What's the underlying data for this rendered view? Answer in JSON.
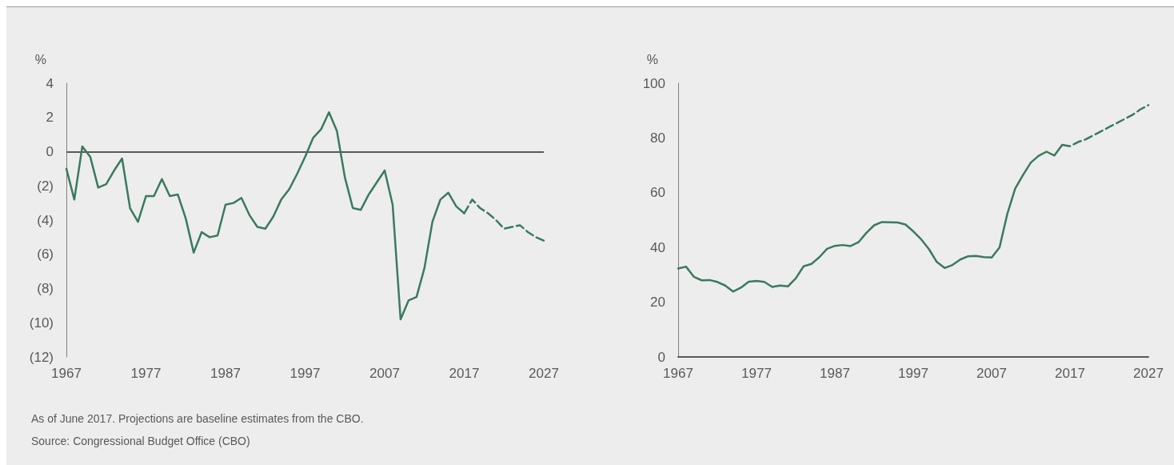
{
  "chart_data": [
    {
      "type": "line",
      "ylabel": "%",
      "categories": [
        "1967",
        null,
        null,
        null,
        null,
        null,
        null,
        null,
        null,
        null,
        "1977",
        null,
        null,
        null,
        null,
        null,
        null,
        null,
        null,
        null,
        "1987",
        null,
        null,
        null,
        null,
        null,
        null,
        null,
        null,
        null,
        "1997",
        null,
        null,
        null,
        null,
        null,
        null,
        null,
        null,
        null,
        "2007",
        null,
        null,
        null,
        null,
        null,
        null,
        null,
        null,
        null,
        "2017",
        null,
        null,
        null,
        null,
        null,
        null,
        null,
        null,
        null,
        "2027"
      ],
      "series": [
        {
          "color": "#3a7a5e",
          "line_style": "solid",
          "values": [
            -1.0,
            -2.8,
            0.3,
            -0.3,
            -2.1,
            -1.9,
            -1.1,
            -0.4,
            -3.3,
            -4.1,
            -2.6,
            -2.6,
            -1.6,
            -2.6,
            -2.5,
            -3.9,
            -5.9,
            -4.7,
            -5.0,
            -4.9,
            -3.1,
            -3.0,
            -2.7,
            -3.7,
            -4.4,
            -4.5,
            -3.8,
            -2.8,
            -2.2,
            -1.3,
            -0.3,
            0.8,
            1.3,
            2.3,
            1.2,
            -1.5,
            -3.3,
            -3.4,
            -2.5,
            -1.8,
            -1.1,
            -3.1,
            -9.8,
            -8.7,
            -8.5,
            -6.8,
            -4.1,
            -2.8,
            -2.4,
            -3.2,
            -3.6,
            null,
            null,
            null,
            null,
            null,
            null,
            null,
            null,
            null,
            null
          ]
        },
        {
          "color": "#3a7a5e",
          "line_style": "dashed",
          "values": [
            null,
            null,
            null,
            null,
            null,
            null,
            null,
            null,
            null,
            null,
            null,
            null,
            null,
            null,
            null,
            null,
            null,
            null,
            null,
            null,
            null,
            null,
            null,
            null,
            null,
            null,
            null,
            null,
            null,
            null,
            null,
            null,
            null,
            null,
            null,
            null,
            null,
            null,
            null,
            null,
            null,
            null,
            null,
            null,
            null,
            null,
            null,
            null,
            null,
            null,
            -3.6,
            -2.8,
            -3.3,
            -3.6,
            -4.0,
            -4.5,
            -4.4,
            -4.3,
            -4.7,
            -5.0,
            -5.2
          ]
        }
      ],
      "ylim": [
        -12,
        4
      ],
      "yticks": [
        {
          "value": -12,
          "label": "(12)"
        },
        {
          "value": -10,
          "label": "(10)"
        },
        {
          "value": -8,
          "label": "(8)"
        },
        {
          "value": -6,
          "label": "(6)"
        },
        {
          "value": -4,
          "label": "(4)"
        },
        {
          "value": -2,
          "label": "(2)"
        },
        0,
        2,
        4
      ],
      "ref_lines": [
        {
          "axis": "y",
          "value": 0,
          "color": "#595959"
        }
      ],
      "grid": false,
      "marker": "none",
      "annotations": [
        "As of June 2017. Projections are baseline estimates from the CBO.",
        "Source: Congressional Budget Office (CBO)"
      ]
    },
    {
      "type": "line",
      "ylabel": "%",
      "categories": [
        "1967",
        null,
        null,
        null,
        null,
        null,
        null,
        null,
        null,
        null,
        "1977",
        null,
        null,
        null,
        null,
        null,
        null,
        null,
        null,
        null,
        "1987",
        null,
        null,
        null,
        null,
        null,
        null,
        null,
        null,
        null,
        "1997",
        null,
        null,
        null,
        null,
        null,
        null,
        null,
        null,
        null,
        "2007",
        null,
        null,
        null,
        null,
        null,
        null,
        null,
        null,
        null,
        "2017",
        null,
        null,
        null,
        null,
        null,
        null,
        null,
        null,
        null,
        "2027"
      ],
      "series": [
        {
          "color": "#3a7a5e",
          "line_style": "solid",
          "values": [
            32.3,
            33.0,
            29.3,
            28.0,
            28.1,
            27.4,
            26.1,
            23.9,
            25.3,
            27.5,
            27.8,
            27.4,
            25.6,
            26.1,
            25.8,
            28.7,
            33.1,
            34.0,
            36.4,
            39.5,
            40.6,
            40.9,
            40.5,
            41.9,
            45.3,
            48.1,
            49.3,
            49.2,
            49.1,
            48.4,
            45.9,
            43.0,
            39.4,
            34.7,
            32.5,
            33.6,
            35.6,
            36.8,
            36.9,
            36.5,
            36.3,
            40.0,
            52.3,
            61.5,
            66.5,
            71.0,
            73.5,
            75.0,
            73.6,
            77.5,
            null,
            null,
            null,
            null,
            null,
            null,
            null,
            null,
            null,
            null,
            null
          ]
        },
        {
          "color": "#3a7a5e",
          "line_style": "dashed",
          "values": [
            null,
            null,
            null,
            null,
            null,
            null,
            null,
            null,
            null,
            null,
            null,
            null,
            null,
            null,
            null,
            null,
            null,
            null,
            null,
            null,
            null,
            null,
            null,
            null,
            null,
            null,
            null,
            null,
            null,
            null,
            null,
            null,
            null,
            null,
            null,
            null,
            null,
            null,
            null,
            null,
            null,
            null,
            null,
            null,
            null,
            null,
            null,
            null,
            null,
            77.5,
            77.0,
            78.5,
            79.5,
            81.0,
            82.5,
            84.0,
            85.5,
            87.0,
            88.5,
            90.5,
            92.0
          ]
        }
      ],
      "ylim": [
        0,
        100
      ],
      "yticks": [
        0,
        20,
        40,
        60,
        80,
        100
      ],
      "grid": false,
      "marker": "none"
    }
  ]
}
